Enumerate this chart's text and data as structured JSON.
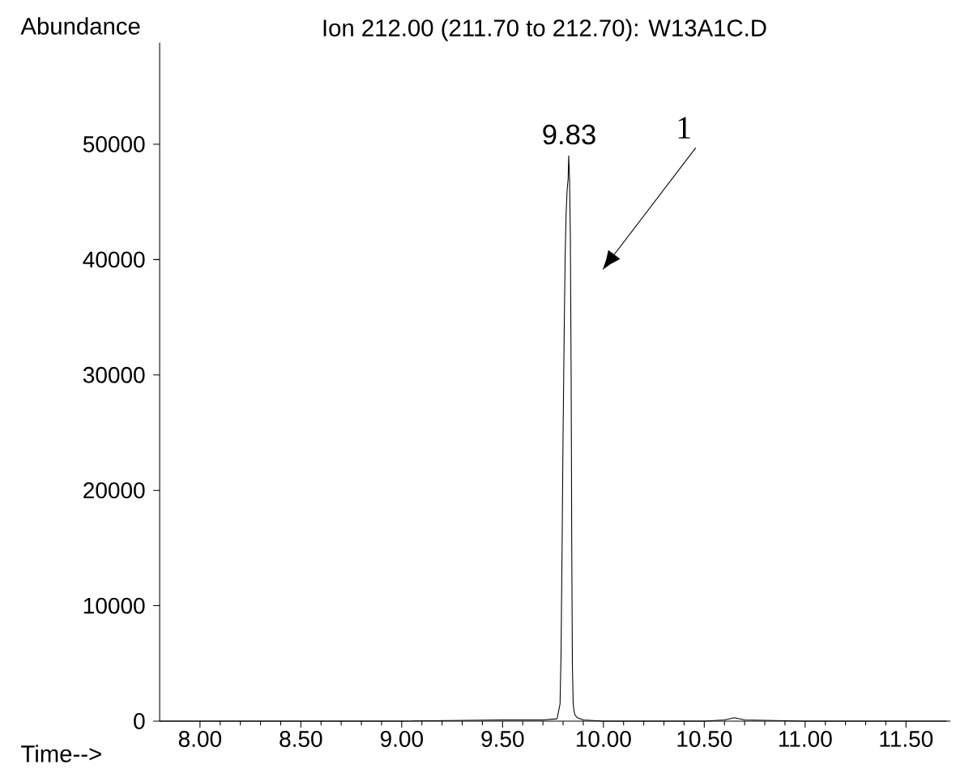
{
  "chart_data": {
    "type": "line",
    "title": "Ion 212.00 (211.70 to 212.70): W13A1C.D",
    "xlabel": "Time-->",
    "ylabel": "Abundance",
    "series": [
      {
        "color": "#000000",
        "x": [
          7.8,
          8.5,
          9.0,
          9.5,
          9.7,
          9.77,
          9.785,
          9.79,
          9.795,
          9.8,
          9.805,
          9.81,
          9.815,
          9.82,
          9.825,
          9.828,
          9.832,
          9.836,
          9.84,
          9.843,
          9.846,
          9.85,
          9.855,
          9.86,
          9.87,
          9.9,
          10.0,
          10.5,
          10.6,
          10.65,
          10.7,
          11.0,
          11.5,
          11.7
        ],
        "values": [
          0,
          0,
          0,
          100,
          100,
          200,
          1500,
          6000,
          15000,
          25000,
          33000,
          40000,
          44000,
          46000,
          47000,
          49000,
          47000,
          42000,
          30000,
          15000,
          5000,
          1500,
          800,
          500,
          300,
          100,
          0,
          0,
          100,
          300,
          100,
          0,
          0,
          0
        ]
      }
    ],
    "xlim": [
      7.8,
      11.72
    ],
    "ylim": [
      0,
      58800
    ],
    "xticks": [
      {
        "value": 8,
        "label": "8.00"
      },
      {
        "value": 8.5,
        "label": "8.50"
      },
      {
        "value": 9,
        "label": "9.00"
      },
      {
        "value": 9.5,
        "label": "9.50"
      },
      {
        "value": 10,
        "label": "10.00"
      },
      {
        "value": 10.5,
        "label": "10.50"
      },
      {
        "value": 11,
        "label": "11.00"
      },
      {
        "value": 11.5,
        "label": "11.50"
      }
    ],
    "yticks": [
      0,
      10000,
      20000,
      30000,
      40000,
      50000
    ],
    "annotations": [
      {
        "text": "9.83",
        "x": 9.83,
        "y": 49000
      },
      "1"
    ],
    "grid": false,
    "marker": "none",
    "line_style": "solid"
  }
}
